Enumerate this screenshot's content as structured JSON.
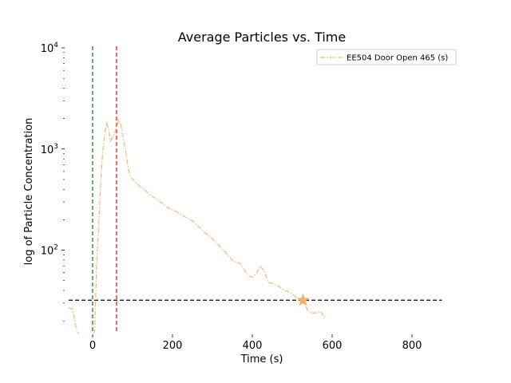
{
  "chart_data": {
    "type": "line",
    "title": "Average Particles vs. Time",
    "xlabel": "Time (s)",
    "ylabel": "log of Particle Concentration",
    "xlim": [
      -70,
      880
    ],
    "ylim": [
      15,
      10000
    ],
    "yscale": "log",
    "xticks": [
      0,
      200,
      400,
      600,
      800
    ],
    "yticks": [
      {
        "value": 100,
        "base": "10",
        "exp": "2"
      },
      {
        "value": 1000,
        "base": "10",
        "exp": "3"
      },
      {
        "value": 10000,
        "base": "10",
        "exp": "4"
      }
    ],
    "grid": false,
    "legend_position": "top-right",
    "series": [
      {
        "name": "EE504 Door Open 465 (s)",
        "color": "#ffb26e",
        "style": "dash-dot",
        "x": [
          -60,
          -50,
          -45,
          -40,
          -30,
          -20,
          -10,
          -5,
          0,
          5,
          10,
          15,
          20,
          25,
          30,
          35,
          40,
          45,
          50,
          55,
          60,
          65,
          70,
          75,
          80,
          85,
          90,
          95,
          100,
          110,
          120,
          130,
          140,
          150,
          160,
          170,
          180,
          190,
          200,
          210,
          220,
          230,
          240,
          250,
          260,
          270,
          280,
          290,
          300,
          310,
          320,
          330,
          340,
          350,
          360,
          370,
          380,
          390,
          400,
          410,
          420,
          430,
          440,
          450,
          460,
          470,
          480,
          490,
          500,
          510,
          520,
          530,
          540,
          550,
          560,
          570,
          580,
          585
        ],
        "y": [
          27,
          26,
          20,
          16,
          14,
          12,
          13,
          13,
          14,
          16,
          70,
          170,
          450,
          900,
          1400,
          1800,
          1600,
          1200,
          1300,
          1450,
          1600,
          1950,
          1800,
          1400,
          1100,
          850,
          620,
          540,
          500,
          460,
          420,
          400,
          360,
          340,
          320,
          300,
          280,
          260,
          250,
          240,
          225,
          215,
          205,
          195,
          180,
          165,
          150,
          140,
          130,
          118,
          108,
          98,
          88,
          79,
          76,
          74,
          64,
          56,
          54,
          58,
          70,
          62,
          48,
          47,
          45,
          43,
          40,
          39,
          37,
          34,
          33,
          30,
          25,
          24,
          24,
          25,
          22,
          22
        ]
      }
    ],
    "vlines": [
      {
        "x": 0,
        "color": "#008000",
        "style": "dashed"
      },
      {
        "x": 60,
        "color": "#ff0000",
        "style": "dashed"
      }
    ],
    "hlines": [
      {
        "y": 32,
        "color": "#000000",
        "style": "dashed",
        "xmin": -60,
        "xmax": 875
      }
    ],
    "markers": [
      {
        "x": 527,
        "y": 32,
        "shape": "star",
        "color": "#f5b06b"
      }
    ]
  }
}
